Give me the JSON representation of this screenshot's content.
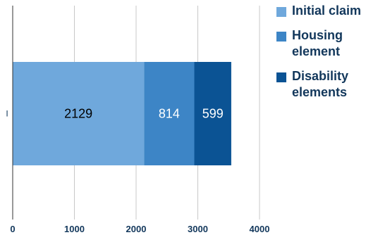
{
  "chart_data": {
    "type": "bar",
    "orientation": "horizontal",
    "stacked": true,
    "categories": [
      "I"
    ],
    "series": [
      {
        "name": "Initial claim",
        "values": [
          2129
        ],
        "color": "#6fa8dc"
      },
      {
        "name": "Housing element",
        "values": [
          814
        ],
        "color": "#3d85c6"
      },
      {
        "name": "Disability elements",
        "values": [
          599
        ],
        "color": "#0b5394"
      }
    ],
    "data_labels": [
      "2129",
      "814",
      "599"
    ],
    "data_label_colors": [
      "#000000",
      "#ffffff",
      "#ffffff"
    ],
    "x_ticks": [
      0,
      1000,
      2000,
      3000,
      4000
    ],
    "x_tick_labels": [
      "0",
      "1000",
      "2000",
      "3000",
      "4000"
    ],
    "xlim": [
      0,
      4000
    ],
    "title": "",
    "xlabel": "",
    "ylabel": "",
    "grid": true,
    "legend_position": "right",
    "tick_label_color": "#12375b",
    "grid_color": "#c8c8c8"
  }
}
